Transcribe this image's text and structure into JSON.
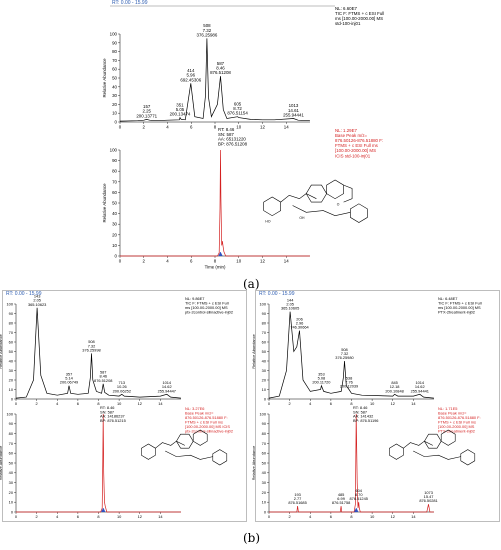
{
  "figure": {
    "caption_a": "(a)",
    "caption_b": "(b)",
    "rt_label_a": "RT: 0.00 - 15.99",
    "rt_label_b1": "RT: 0.00 - 15.99",
    "rt_label_b2": "RT: 0.00 - 15.99",
    "ylabel": "Relative Abundance",
    "xlabel": "Time (min)"
  },
  "chart_data": [
    {
      "id": "a_tic",
      "type": "line",
      "xlim": [
        0,
        16
      ],
      "ylim": [
        0,
        100
      ],
      "xticks": [
        0,
        2,
        4,
        6,
        8,
        10,
        12,
        14
      ],
      "yticks": [
        0,
        10,
        20,
        30,
        40,
        50,
        60,
        70,
        80,
        90,
        100
      ],
      "info": [
        "NL: 6.60E7",
        "TIC F: FTMS + c ESI Full",
        "ms [100.00-2000.00] MS",
        "std-100-inj01"
      ],
      "info_color": "#000000",
      "line_color": "#000000",
      "x": [
        0.0,
        1.5,
        2.0,
        2.25,
        2.5,
        3.0,
        4.0,
        5.0,
        5.05,
        5.15,
        5.5,
        5.96,
        6.3,
        7.0,
        7.2,
        7.32,
        7.45,
        7.7,
        8.2,
        8.46,
        8.7,
        9.0,
        9.9,
        10.0,
        11.0,
        12.0,
        13.0,
        14.61,
        15.0,
        15.99
      ],
      "y": [
        1,
        1.5,
        2,
        3,
        2,
        1.5,
        2,
        2.5,
        5,
        3,
        2.5,
        44,
        6,
        4,
        30,
        95,
        28,
        6,
        20,
        52,
        14,
        4,
        6,
        5,
        3,
        2.5,
        2.5,
        4,
        2,
        1.5
      ],
      "labels": [
        {
          "x": 2.25,
          "y": 3,
          "lines": [
            "157",
            "2.25",
            "200.13771"
          ]
        },
        {
          "x": 5.05,
          "y": 5,
          "lines": [
            "351",
            "5.05",
            "200.13474"
          ]
        },
        {
          "x": 5.96,
          "y": 44,
          "lines": [
            "414",
            "5.96",
            "692.45306"
          ]
        },
        {
          "x": 7.32,
          "y": 95,
          "lines": [
            "508",
            "7.32",
            "376.25986"
          ]
        },
        {
          "x": 8.46,
          "y": 52,
          "lines": [
            "587",
            "8.46",
            "876.51208"
          ]
        },
        {
          "x": 9.9,
          "y": 6,
          "lines": [
            "605",
            "8.72",
            "876.51154"
          ]
        },
        {
          "x": 14.61,
          "y": 4,
          "lines": [
            "1013",
            "14.61",
            "255.94441"
          ]
        }
      ],
      "show_xlabel": false
    },
    {
      "id": "a_xic",
      "type": "line",
      "xlim": [
        0,
        16
      ],
      "ylim": [
        0,
        100
      ],
      "xticks": [
        0,
        2,
        4,
        6,
        8,
        10,
        12,
        14
      ],
      "yticks": [
        0,
        10,
        20,
        30,
        40,
        50,
        60,
        70,
        80,
        90,
        100
      ],
      "info": [
        "NL: 1.29E7",
        "Base Peak m/z=",
        "876.50126-876.51880 F:",
        "FTMS + c ESI Full ms",
        "[100.00-2000.00] MS",
        "ICIS std-100-inj01"
      ],
      "info_color": "#d42020",
      "line_color": "#d42020",
      "peak_info": [
        "RT: 8.46",
        "SN: 587",
        "AA: 65131220",
        "BP: 876.51208"
      ],
      "x": [
        0.0,
        8.2,
        8.35,
        8.42,
        8.46,
        8.5,
        8.56,
        8.62,
        8.68,
        8.75,
        8.9,
        15.99
      ],
      "y": [
        0,
        0,
        3,
        45,
        100,
        55,
        10,
        14,
        9,
        4,
        0,
        0
      ],
      "show_xlabel": true
    },
    {
      "id": "b1_tic",
      "type": "line",
      "xlim": [
        0,
        16
      ],
      "ylim": [
        0,
        100
      ],
      "xticks": [
        0,
        2,
        4,
        6,
        8,
        10,
        12,
        14
      ],
      "yticks": [
        0,
        10,
        20,
        30,
        40,
        50,
        60,
        70,
        80,
        90,
        100
      ],
      "info": [
        "NL: 9.86E7",
        "TIC F: FTMS + c ESI Full",
        "ms [100.00-2000.00] MS",
        "ptx-2control-silinactive-inj02"
      ],
      "info_color": "#000000",
      "line_color": "#000000",
      "x": [
        0.0,
        1.0,
        1.7,
        2.05,
        2.4,
        3.0,
        4.0,
        5.0,
        5.14,
        5.3,
        6.0,
        7.0,
        7.2,
        7.32,
        7.45,
        7.8,
        8.3,
        8.46,
        8.6,
        9.0,
        10.0,
        10.26,
        10.5,
        12.0,
        14.0,
        14.62,
        15.0,
        15.99
      ],
      "y": [
        1,
        2,
        20,
        96,
        25,
        6,
        4,
        6,
        14,
        6,
        5,
        6,
        22,
        48,
        20,
        8,
        6,
        16,
        7,
        4,
        3,
        5,
        3,
        2,
        3,
        5,
        2,
        1
      ],
      "labels": [
        {
          "x": 2.05,
          "y": 96,
          "lines": [
            "143",
            "2.05",
            "365.10623"
          ]
        },
        {
          "x": 5.14,
          "y": 14,
          "lines": [
            "357",
            "5.14",
            "200.06749"
          ]
        },
        {
          "x": 7.32,
          "y": 48,
          "lines": [
            "508",
            "7.32",
            "376.25998"
          ]
        },
        {
          "x": 8.46,
          "y": 16,
          "lines": [
            "587",
            "8.46",
            "876.51208"
          ]
        },
        {
          "x": 10.26,
          "y": 5,
          "lines": [
            "713",
            "10.26",
            "200.06252"
          ]
        },
        {
          "x": 14.62,
          "y": 5,
          "lines": [
            "1014",
            "14.62",
            "255.94447"
          ]
        }
      ],
      "show_xlabel": false
    },
    {
      "id": "b1_xic",
      "type": "line",
      "xlim": [
        0,
        16
      ],
      "ylim": [
        0,
        100
      ],
      "xticks": [
        0,
        2,
        4,
        6,
        8,
        10,
        12,
        14
      ],
      "yticks": [
        0,
        10,
        20,
        30,
        40,
        50,
        60,
        70,
        80,
        90,
        100
      ],
      "info": [
        "NL: 3.27E6",
        "Base Peak m/z=",
        "876.50126-876.51880 F:",
        "FTMS + c ESI Full ms",
        "[100.00-2000.00] MS ICIS",
        "ptx-2control-silinactive-inj02"
      ],
      "info_color": "#d42020",
      "line_color": "#d42020",
      "peak_info": [
        "RT: 8.46",
        "SN: 587",
        "AA: 14186237",
        "BP: 876.51215"
      ],
      "x": [
        0.0,
        8.2,
        8.36,
        8.42,
        8.46,
        8.5,
        8.58,
        8.65,
        8.8,
        15.99
      ],
      "y": [
        0,
        0,
        4,
        55,
        100,
        40,
        10,
        6,
        0,
        0
      ],
      "show_xlabel": false
    },
    {
      "id": "b2_tic",
      "type": "line",
      "xlim": [
        0,
        16
      ],
      "ylim": [
        0,
        100
      ],
      "xticks": [
        0,
        2,
        4,
        6,
        8,
        10,
        12,
        14
      ],
      "yticks": [
        0,
        10,
        20,
        30,
        40,
        50,
        60,
        70,
        80,
        90,
        100
      ],
      "info": [
        "NL: 6.48E7",
        "TIC F: FTMS + c ESI Full",
        "ms [100.00-2000.00] MS",
        "PTX-2treatment-inj02"
      ],
      "info_color": "#000000",
      "line_color": "#000000",
      "x": [
        0.0,
        1.0,
        1.7,
        2.05,
        2.4,
        2.7,
        2.96,
        3.3,
        4.0,
        5.0,
        5.08,
        5.3,
        6.0,
        7.0,
        7.2,
        7.32,
        7.5,
        7.76,
        8.0,
        9.0,
        12.0,
        12.18,
        12.5,
        14.0,
        14.62,
        15.0,
        15.99
      ],
      "y": [
        1,
        3,
        30,
        92,
        50,
        55,
        72,
        20,
        8,
        10,
        14,
        8,
        6,
        8,
        22,
        40,
        14,
        10,
        6,
        4,
        3,
        5,
        3,
        3,
        5,
        2,
        1
      ],
      "labels": [
        {
          "x": 2.05,
          "y": 92,
          "lines": [
            "144",
            "2.05",
            "365.10605"
          ]
        },
        {
          "x": 2.96,
          "y": 72,
          "lines": [
            "206",
            "2.96",
            "746.30664"
          ]
        },
        {
          "x": 5.08,
          "y": 14,
          "lines": [
            "353",
            "5.08",
            "200.11720"
          ]
        },
        {
          "x": 7.32,
          "y": 40,
          "lines": [
            "508",
            "7.32",
            "376.25980"
          ]
        },
        {
          "x": 7.76,
          "y": 10,
          "lines": [
            "538",
            "7.76",
            "200.12039"
          ]
        },
        {
          "x": 12.18,
          "y": 5,
          "lines": [
            "845",
            "12.18",
            "200.10848"
          ]
        },
        {
          "x": 14.62,
          "y": 5,
          "lines": [
            "1014",
            "14.62",
            "255.94441"
          ]
        }
      ],
      "show_xlabel": false
    },
    {
      "id": "b2_xic",
      "type": "line",
      "xlim": [
        0,
        16
      ],
      "ylim": [
        0,
        100
      ],
      "xticks": [
        0,
        2,
        4,
        6,
        8,
        10,
        12,
        14
      ],
      "yticks": [
        0,
        10,
        20,
        30,
        40,
        50,
        60,
        70,
        80,
        90,
        100
      ],
      "info": [
        "NL: 1.71E5",
        "Base Peak m/z=",
        "876.50126-876.51880 F:",
        "FTMS + c ESI Full ms",
        "[100.00-2000.00] MS",
        "PTX-2treatment-inj02"
      ],
      "info_color": "#d42020",
      "line_color": "#d42020",
      "peak_info": [
        "RT: 8.46",
        "SN: 587",
        "AA: 141432",
        "BP: 876.51196"
      ],
      "x": [
        0.0,
        2.7,
        2.77,
        2.85,
        6.9,
        6.99,
        7.05,
        8.25,
        8.38,
        8.46,
        8.55,
        8.63,
        8.7,
        8.76,
        8.85,
        15.3,
        15.47,
        15.6,
        15.99
      ],
      "y": [
        0,
        0,
        6,
        0,
        0,
        6,
        0,
        0,
        8,
        100,
        30,
        4,
        10,
        4,
        0,
        0,
        8,
        0,
        0
      ],
      "labels": [
        {
          "x": 2.77,
          "y": 6,
          "lines": [
            "193",
            "2.77",
            "876.51685"
          ]
        },
        {
          "x": 6.99,
          "y": 6,
          "lines": [
            "485",
            "6.99",
            "876.51758"
          ]
        },
        {
          "x": 8.7,
          "y": 10,
          "lines": [
            "604",
            "8.70",
            "876.51245"
          ]
        },
        {
          "x": 15.47,
          "y": 8,
          "lines": [
            "1073",
            "15.47",
            "876.50281"
          ]
        }
      ],
      "show_xlabel": false
    }
  ]
}
